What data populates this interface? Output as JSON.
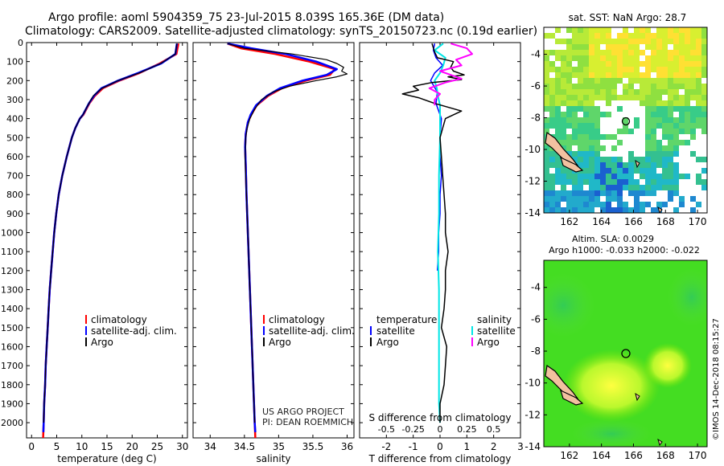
{
  "header": {
    "title_line1": "Argo profile: aoml 5904359_75 23-Jul-2015 8.039S 165.36E (DM data)",
    "title_line2": "Climatology: CARS2009. Satellite-adjusted climatology: synTS_20150723.nc (0.19d earlier)"
  },
  "credits": {
    "project": "US ARGO PROJECT",
    "pi": "PI: DEAN ROEMMICH",
    "stamp": "©IMOS 14-Dec-2018 08:15:27"
  },
  "colors": {
    "climatology": "#ff0000",
    "satellite": "#0000ff",
    "argo": "#000000",
    "salinity_satellite": "#00e5e5",
    "salinity_argo": "#ff00ff",
    "land": "#f2c1a0",
    "sst_missing": "#ffffff"
  },
  "legends": {
    "temp_panel": [
      "climatology",
      "satellite-adj. clim.",
      "Argo"
    ],
    "sal_panel": [
      "climatology",
      "satellite-adj. clim.",
      "Argo"
    ],
    "diff_panel": {
      "temperature_header": "temperature",
      "salinity_header": "salinity",
      "temperature_items": [
        "satellite",
        "Argo"
      ],
      "salinity_items": [
        "satellite",
        "Argo"
      ]
    }
  },
  "chart_data": [
    {
      "type": "line",
      "name": "temperature-profile",
      "xlabel": "temperature (deg C)",
      "ylabel": "",
      "xlim": [
        -1,
        31
      ],
      "ylim": [
        2080,
        0
      ],
      "xticks": [
        0,
        5,
        10,
        15,
        20,
        25,
        30
      ],
      "yticks": [
        0,
        100,
        200,
        300,
        400,
        500,
        600,
        700,
        800,
        900,
        1000,
        1100,
        1200,
        1300,
        1400,
        1500,
        1600,
        1700,
        1800,
        1900,
        2000
      ],
      "series": [
        {
          "name": "climatology",
          "depth": [
            5,
            60,
            110,
            160,
            200,
            240,
            280,
            320,
            380,
            400,
            450,
            500,
            600,
            700,
            800,
            900,
            1000,
            1100,
            1200,
            1300,
            1400,
            1500,
            1600,
            1700,
            1800,
            1900,
            2000,
            2080
          ],
          "values": [
            29.2,
            28.8,
            25.5,
            21.5,
            17.5,
            14.2,
            12.6,
            11.5,
            10.3,
            9.6,
            8.7,
            8.0,
            7.0,
            6.1,
            5.4,
            4.9,
            4.5,
            4.2,
            3.9,
            3.6,
            3.4,
            3.2,
            3.0,
            2.8,
            2.7,
            2.5,
            2.4,
            2.3
          ]
        },
        {
          "name": "satellite-adj. clim.",
          "depth": [
            5,
            60,
            110,
            160,
            200,
            240,
            280,
            320,
            380,
            400,
            450,
            500,
            600,
            700,
            800,
            900,
            1000,
            1100,
            1200,
            1300,
            1400,
            1500,
            1600,
            1700,
            1800,
            1900,
            2000,
            2050
          ],
          "values": [
            28.9,
            28.6,
            25.8,
            21.2,
            17.2,
            13.9,
            12.4,
            11.4,
            10.2,
            9.6,
            8.7,
            8.0,
            7.0,
            6.1,
            5.4,
            4.9,
            4.5,
            4.2,
            3.9,
            3.6,
            3.4,
            3.2,
            3.0,
            2.8,
            2.7,
            2.5,
            2.4,
            2.35
          ]
        },
        {
          "name": "Argo",
          "depth": [
            5,
            60,
            110,
            160,
            200,
            240,
            280,
            320,
            380,
            400,
            450,
            500,
            600,
            700,
            800,
            900,
            1000,
            1100,
            1200,
            1300,
            1400,
            1500,
            1600,
            1700,
            1800,
            1900,
            2000
          ],
          "values": [
            28.9,
            28.6,
            25.7,
            21.4,
            17.2,
            14.0,
            12.3,
            11.4,
            10.2,
            9.6,
            8.7,
            8.0,
            7.0,
            6.1,
            5.4,
            4.9,
            4.5,
            4.2,
            3.9,
            3.6,
            3.4,
            3.2,
            3.0,
            2.8,
            2.7,
            2.5,
            2.4
          ]
        }
      ]
    },
    {
      "type": "line",
      "name": "salinity-profile",
      "xlabel": "salinity",
      "xlim": [
        33.75,
        36.1
      ],
      "ylim": [
        2080,
        0
      ],
      "xticks": [
        34,
        34.5,
        35,
        35.5,
        36
      ],
      "series": [
        {
          "name": "climatology",
          "depth": [
            5,
            30,
            60,
            100,
            140,
            170,
            200,
            240,
            280,
            330,
            380,
            420,
            480,
            550,
            650,
            800,
            1000,
            1200,
            1400,
            1600,
            1800,
            2000,
            2080
          ],
          "values": [
            34.25,
            34.45,
            34.95,
            35.45,
            35.82,
            35.75,
            35.4,
            35.05,
            34.85,
            34.68,
            34.6,
            34.55,
            34.52,
            34.51,
            34.52,
            34.53,
            34.55,
            34.57,
            34.59,
            34.61,
            34.63,
            34.65,
            34.66
          ]
        },
        {
          "name": "satellite-adj. clim.",
          "depth": [
            5,
            30,
            60,
            100,
            140,
            170,
            200,
            240,
            280,
            330,
            380,
            420,
            480,
            550,
            650,
            800,
            1000,
            1200,
            1400,
            1600,
            1800,
            2000,
            2050
          ],
          "values": [
            34.25,
            34.6,
            35.1,
            35.55,
            35.85,
            35.7,
            35.35,
            35.02,
            34.83,
            34.67,
            34.59,
            34.55,
            34.52,
            34.51,
            34.52,
            34.53,
            34.55,
            34.57,
            34.59,
            34.61,
            34.63,
            34.65,
            34.66
          ]
        },
        {
          "name": "Argo",
          "depth": [
            5,
            30,
            60,
            90,
            110,
            130,
            150,
            165,
            180,
            200,
            230,
            260,
            300,
            350,
            400,
            450,
            500,
            600,
            700,
            800,
            900,
            1000,
            1200,
            1400,
            1600,
            1800,
            2000
          ],
          "values": [
            34.25,
            34.5,
            35.2,
            35.7,
            35.85,
            35.95,
            35.92,
            36.0,
            35.85,
            35.55,
            35.15,
            34.92,
            34.75,
            34.65,
            34.58,
            34.54,
            34.52,
            34.51,
            34.52,
            34.53,
            34.54,
            34.55,
            34.57,
            34.59,
            34.61,
            34.63,
            34.65
          ]
        }
      ]
    },
    {
      "type": "line",
      "name": "difference-from-climatology",
      "xlabel": "T difference from climatology",
      "xlabel_top": "S difference from climatology",
      "xlim": [
        -3,
        3
      ],
      "ylim": [
        2080,
        0
      ],
      "xticks": [
        -2,
        -1,
        0,
        1,
        2,
        3
      ],
      "s_ticks": [
        -0.5,
        -0.25,
        0,
        0.25,
        0.5
      ],
      "s_tick_labels": [
        "-0.5",
        "-0.25",
        "0",
        "0.25",
        "0.5"
      ],
      "series": [
        {
          "name": "temperature satellite",
          "depth": [
            5,
            40,
            80,
            120,
            160,
            200,
            260,
            320,
            400,
            500,
            600,
            700,
            800,
            900,
            1000,
            1100,
            1200
          ],
          "values": [
            -0.2,
            -0.25,
            -0.15,
            0.1,
            -0.2,
            -0.35,
            -0.1,
            -0.15,
            0.05,
            0.0,
            0.0,
            0.05,
            0.0,
            0.0,
            -0.05,
            -0.05,
            -0.1
          ]
        },
        {
          "name": "temperature Argo",
          "depth": [
            5,
            50,
            80,
            100,
            130,
            150,
            170,
            180,
            195,
            210,
            230,
            250,
            270,
            290,
            320,
            360,
            400,
            450,
            500,
            600,
            700,
            800,
            900,
            1000,
            1100,
            1200,
            1300,
            1400,
            1500,
            1600,
            1700,
            1800,
            1900,
            2000
          ],
          "values": [
            -0.3,
            -0.2,
            -0.1,
            0.5,
            0.4,
            0.5,
            0.9,
            0.3,
            0.8,
            -0.3,
            -1.0,
            -0.8,
            -1.4,
            -0.8,
            -0.2,
            0.8,
            0.2,
            0.1,
            0.0,
            0.05,
            0.1,
            0.15,
            0.2,
            0.2,
            0.3,
            0.2,
            0.2,
            0.15,
            0.05,
            0.25,
            0.2,
            0.15,
            0.0,
            0.0
          ]
        },
        {
          "name": "salinity satellite",
          "depth": [
            5,
            40,
            80,
            120,
            160,
            200,
            240,
            280,
            330,
            400,
            500,
            700,
            900,
            1100,
            1300,
            1500,
            1700,
            1900,
            2000
          ],
          "values": [
            0.03,
            -0.05,
            0.05,
            0.03,
            0.0,
            -0.05,
            -0.03,
            -0.02,
            0.0,
            0.0,
            0.0,
            -0.01,
            -0.01,
            -0.02,
            -0.01,
            -0.01,
            -0.01,
            -0.01,
            0.0
          ]
        },
        {
          "name": "salinity Argo",
          "depth": [
            5,
            30,
            60,
            90,
            120,
            150,
            170,
            190,
            210,
            240,
            270,
            300,
            330
          ],
          "values": [
            0.1,
            0.25,
            0.3,
            0.15,
            0.2,
            0.0,
            0.1,
            0.2,
            0.05,
            -0.1,
            0.0,
            -0.05,
            -0.05
          ]
        }
      ]
    },
    {
      "type": "heatmap",
      "name": "sst-map",
      "title": "sat. SST: NaN Argo: 28.7",
      "xlim": [
        160.4,
        170.6
      ],
      "ylim": [
        -14,
        -2.3
      ],
      "xticks": [
        162,
        164,
        166,
        168,
        170
      ],
      "yticks": [
        -4,
        -6,
        -8,
        -10,
        -12,
        -14
      ],
      "argo_position": {
        "lon": 165.36,
        "lat": -8.039
      }
    },
    {
      "type": "heatmap",
      "name": "sla-map",
      "title": "Altim. SLA: 0.0029",
      "subtitle": "Argo h1000: -0.033 h2000: -0.022",
      "xlim": [
        160.4,
        170.6
      ],
      "ylim": [
        -14,
        -2.3
      ],
      "xticks": [
        162,
        164,
        166,
        168,
        170
      ],
      "yticks": [
        -4,
        -6,
        -8,
        -10,
        -12,
        -14
      ],
      "argo_position": {
        "lon": 165.36,
        "lat": -8.039
      }
    }
  ]
}
